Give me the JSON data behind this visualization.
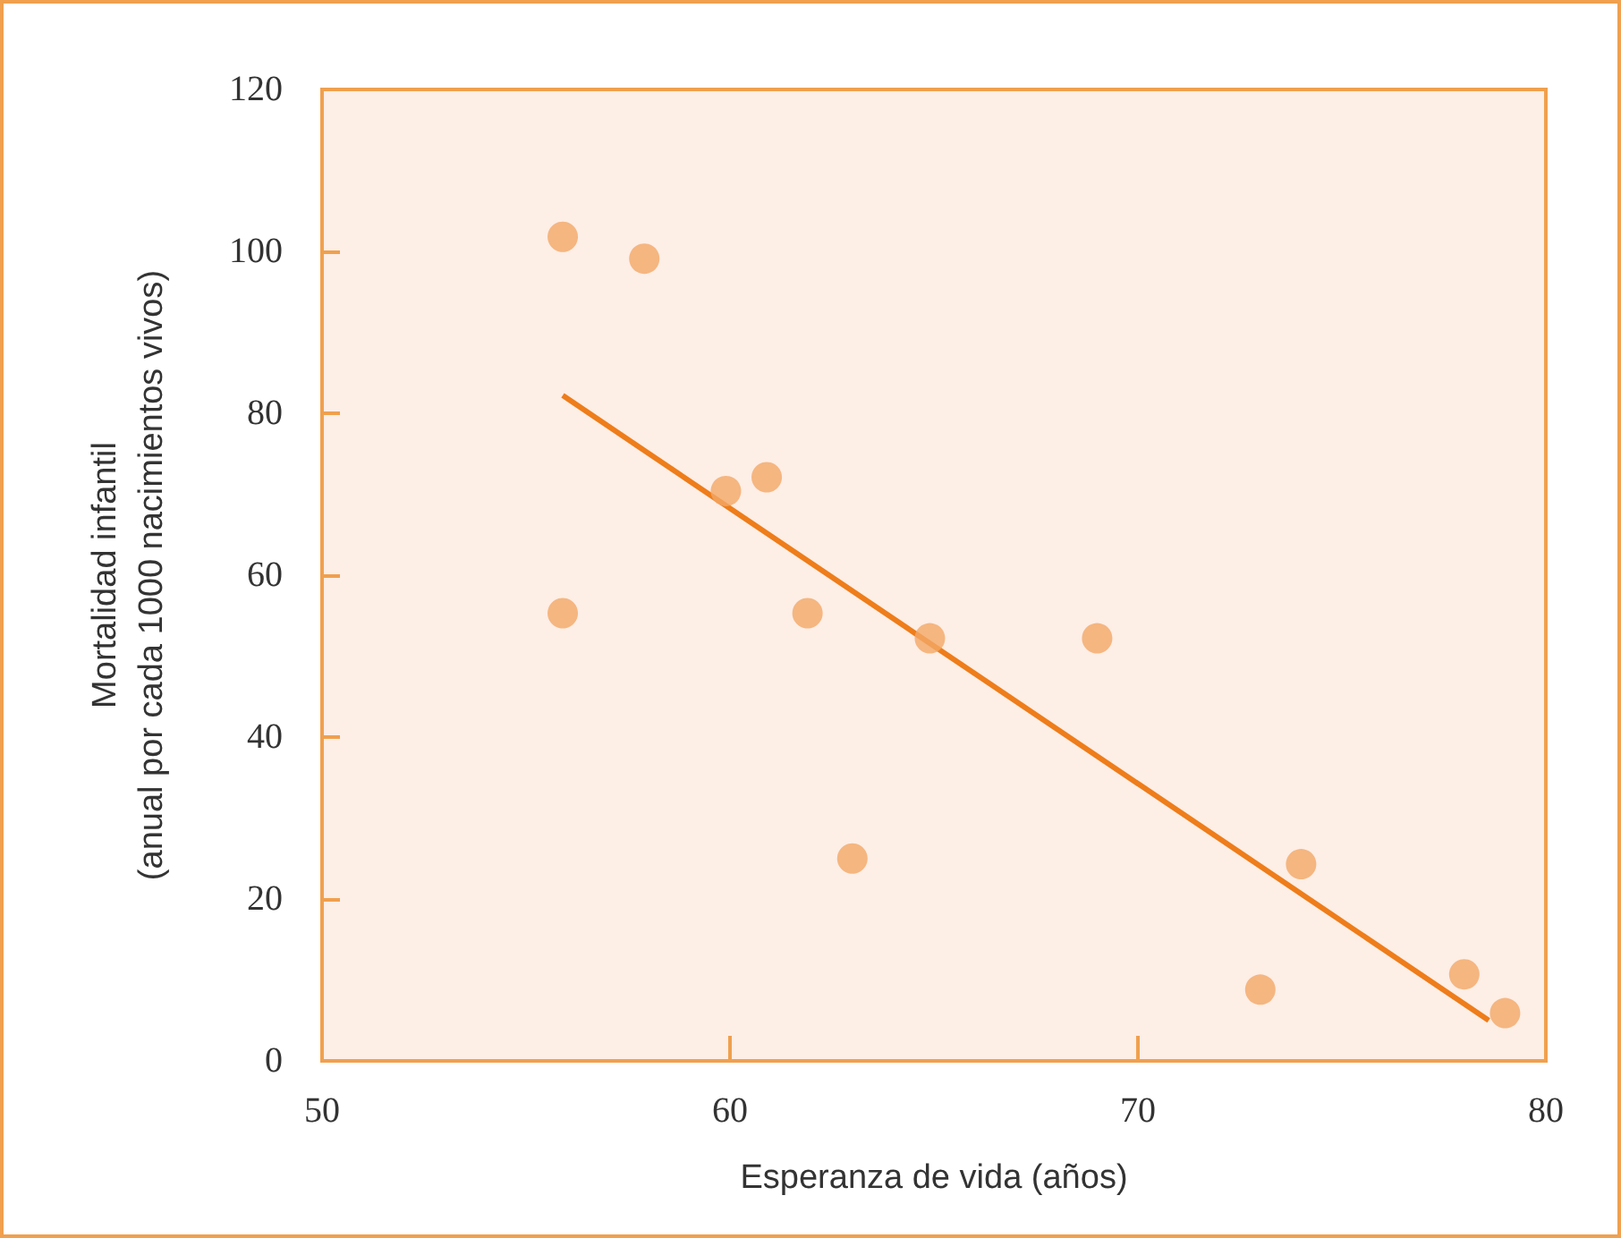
{
  "chart_data": {
    "type": "scatter",
    "xlabel": "Esperanza de vida (años)",
    "ylabel": "Mortalidad infantil\n(anual por cada 1000 nacimientos vivos)",
    "xlim": [
      50,
      80
    ],
    "xticks": [
      50,
      60,
      70,
      80
    ],
    "ylim": [
      0,
      120
    ],
    "yticks": [
      0,
      20,
      40,
      60,
      80,
      100,
      120
    ],
    "grid": false,
    "marker": "circle",
    "series": [
      {
        "color": "#f2a766",
        "x": [
          55.9,
          57.9,
          59.9,
          60.9,
          55.9,
          61.9,
          64.9,
          69.0,
          63.0,
          74.0,
          73.0,
          78.0,
          79.0
        ],
        "values": [
          101.8,
          99.1,
          70.4,
          72.1,
          55.3,
          55.3,
          52.2,
          52.2,
          25.0,
          24.3,
          8.8,
          10.7,
          5.9
        ]
      },
      {
        "type": "line",
        "marker": "none",
        "color": "#ee7d1a",
        "x": [
          55.9,
          78.6
        ],
        "values": [
          82.2,
          5.0
        ]
      }
    ]
  }
}
